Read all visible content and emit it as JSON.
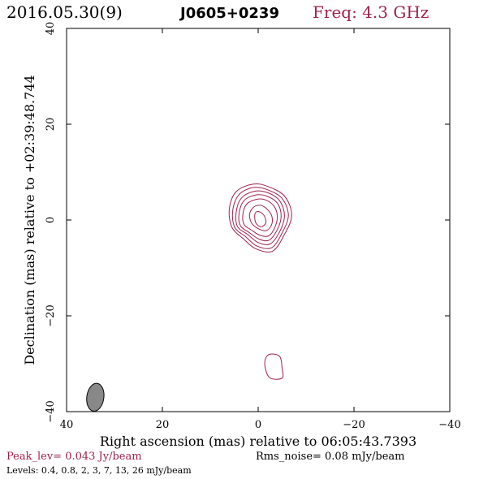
{
  "header": {
    "date": "2016.05.30(9)",
    "source": "J0605+0239",
    "freq": "Freq: 4.3 GHz"
  },
  "footer": {
    "peak": "Peak_lev=  0.043 Jy/beam",
    "rms": "Rms_noise= 0.08 mJy/beam",
    "levels": "Levels: 0.4, 0.8,   2,   3,   7,  13,  26 mJy/beam"
  },
  "colors": {
    "contour": "#a0224e",
    "title_freq": "#a0224e",
    "peak_text": "#a0224e",
    "axes": "#000000",
    "beam_fill": "#888888"
  },
  "chart_data": {
    "type": "contour",
    "xlabel": "Right ascension (mas) relative to 06:05:43.7393",
    "ylabel": "Declination (mas) relative to +02:39:48.744",
    "xlim": [
      40,
      -40
    ],
    "ylim": [
      -40,
      40
    ],
    "x_ticks": [
      40,
      20,
      0,
      -20,
      -40
    ],
    "y_ticks": [
      -40,
      -20,
      0,
      20,
      40
    ],
    "x_tick_labels": [
      "40",
      "20",
      "0",
      "−20",
      "−40"
    ],
    "y_tick_labels": [
      "−40",
      "−20",
      "0",
      "20",
      "40"
    ],
    "levels_mJy": [
      0.4,
      0.8,
      2,
      3,
      7,
      13,
      26
    ],
    "contours": [
      [
        [
          -5.5,
          5
        ],
        [
          -2,
          7
        ],
        [
          1,
          7.5
        ],
        [
          4.5,
          6
        ],
        [
          6,
          2.5
        ],
        [
          5.5,
          -1.5
        ],
        [
          3,
          -4
        ],
        [
          0.5,
          -6
        ],
        [
          -3,
          -6.5
        ],
        [
          -5.5,
          -3
        ],
        [
          -7,
          1
        ],
        [
          -5.5,
          5
        ]
      ],
      [
        [
          -5,
          4.5
        ],
        [
          -2,
          6.3
        ],
        [
          1,
          6.8
        ],
        [
          4,
          5.3
        ],
        [
          5.3,
          2
        ],
        [
          4.9,
          -1.5
        ],
        [
          2.6,
          -3.5
        ],
        [
          0.3,
          -5.4
        ],
        [
          -2.8,
          -5.8
        ],
        [
          -5,
          -2.7
        ],
        [
          -6.3,
          1
        ],
        [
          -5,
          4.5
        ]
      ],
      [
        [
          -4.5,
          4
        ],
        [
          -2,
          5.7
        ],
        [
          0.8,
          6
        ],
        [
          3.5,
          4.6
        ],
        [
          4.6,
          1.6
        ],
        [
          4.3,
          -1.4
        ],
        [
          2.2,
          -3
        ],
        [
          0,
          -4.7
        ],
        [
          -2.5,
          -5
        ],
        [
          -4.5,
          -2.4
        ],
        [
          -5.5,
          0.9
        ],
        [
          -4.5,
          4
        ]
      ],
      [
        [
          -4,
          3.5
        ],
        [
          -1.8,
          5
        ],
        [
          0.6,
          5.2
        ],
        [
          3,
          4
        ],
        [
          4,
          1.3
        ],
        [
          3.7,
          -1.2
        ],
        [
          1.9,
          -2.6
        ],
        [
          -0.2,
          -4
        ],
        [
          -2.3,
          -4.2
        ],
        [
          -4,
          -2
        ],
        [
          -4.8,
          0.8
        ],
        [
          -4,
          3.5
        ]
      ],
      [
        [
          -3.3,
          2.9
        ],
        [
          -1.5,
          4.2
        ],
        [
          0.4,
          4.3
        ],
        [
          2.4,
          3.3
        ],
        [
          3.2,
          1.1
        ],
        [
          2.9,
          -1
        ],
        [
          1.4,
          -2.1
        ],
        [
          -0.4,
          -3.2
        ],
        [
          -2.2,
          -3.3
        ],
        [
          -3.5,
          -1.5
        ],
        [
          -4,
          0.8
        ],
        [
          -3.3,
          2.9
        ]
      ],
      [
        [
          -2.3,
          1.8
        ],
        [
          -0.8,
          3
        ],
        [
          0.8,
          2.8
        ],
        [
          1.8,
          1.3
        ],
        [
          1.4,
          -0.6
        ],
        [
          0,
          -1.8
        ],
        [
          -1.7,
          -2.2
        ],
        [
          -2.8,
          -1
        ],
        [
          -2.9,
          0.6
        ],
        [
          -2.3,
          1.8
        ]
      ],
      [
        [
          -1.2,
          1
        ],
        [
          0,
          1.8
        ],
        [
          0.7,
          1.2
        ],
        [
          0.5,
          -0.6
        ],
        [
          -0.6,
          -1.4
        ],
        [
          -1.6,
          -0.6
        ],
        [
          -1.2,
          1
        ]
      ],
      [
        [
          -1.5,
          -31
        ],
        [
          -2.5,
          -33
        ],
        [
          -5,
          -33
        ],
        [
          -5,
          -31
        ],
        [
          -4.5,
          -28.5
        ],
        [
          -2.5,
          -28
        ],
        [
          -1.5,
          -29
        ],
        [
          -1.5,
          -31
        ]
      ]
    ],
    "beam": {
      "x": 34,
      "y": -37,
      "major_mas": 4.5,
      "minor_mas": 2.2,
      "pa_deg": 8
    },
    "grid": false
  }
}
